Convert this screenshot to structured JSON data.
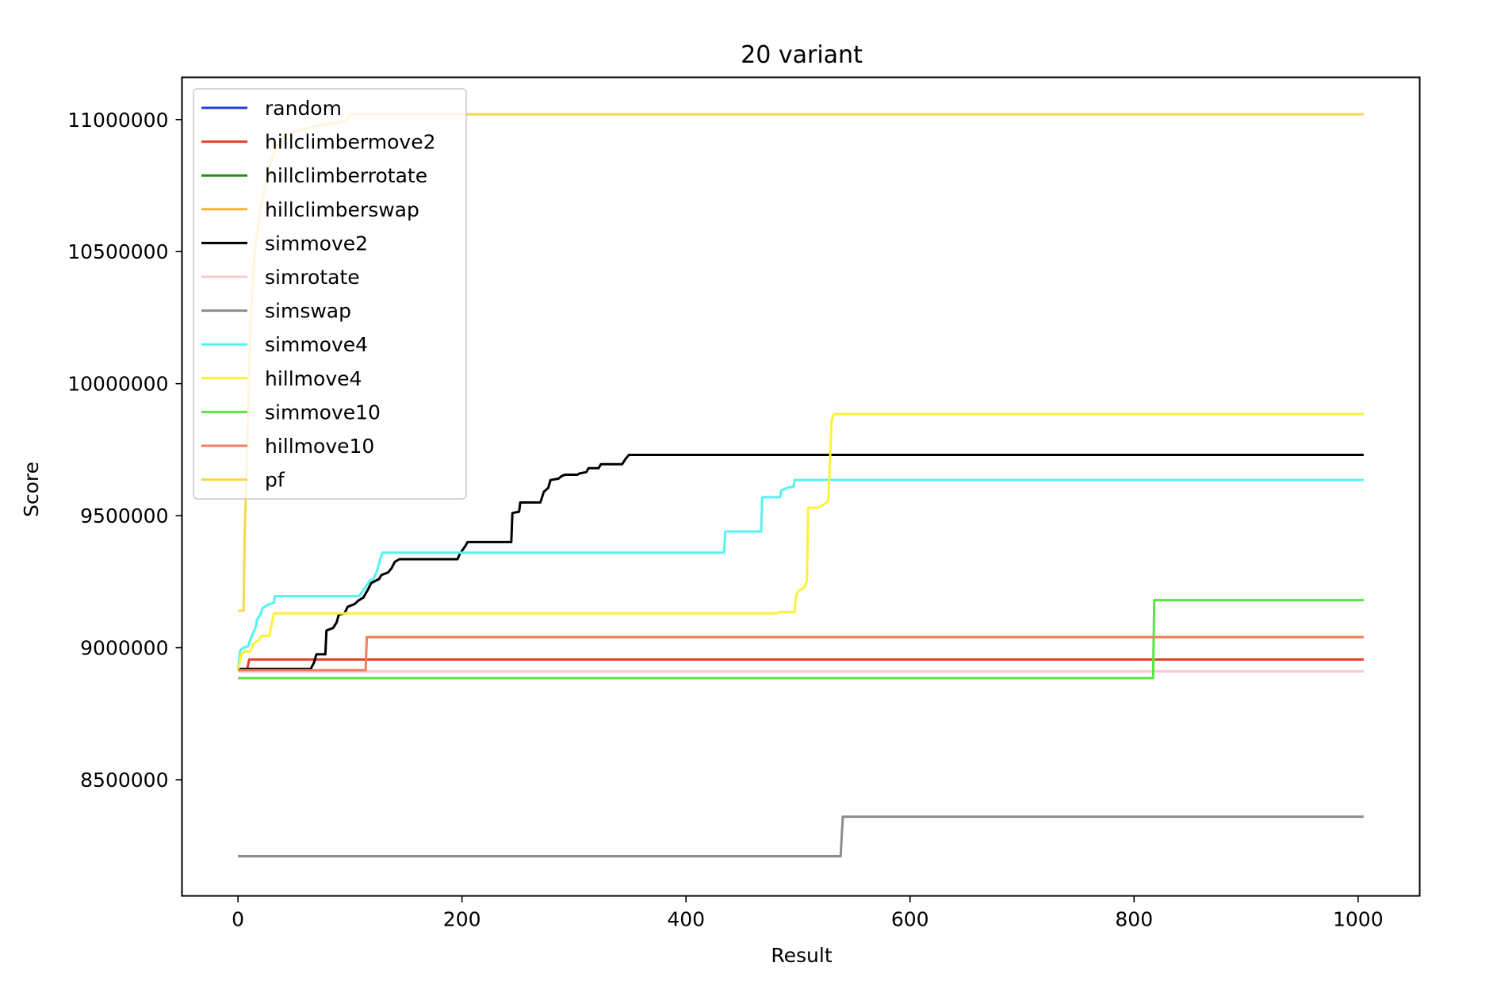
{
  "chart_data": {
    "type": "line",
    "title": "20 variant",
    "xlabel": "Result",
    "ylabel": "Score",
    "xlim": [
      -50,
      1055
    ],
    "ylim": [
      8060000,
      11160000
    ],
    "xticks": [
      0,
      200,
      400,
      600,
      800,
      1000
    ],
    "xtick_labels": [
      "0",
      "200",
      "400",
      "600",
      "800",
      "1000"
    ],
    "yticks": [
      8500000,
      9000000,
      9500000,
      10000000,
      10500000,
      11000000
    ],
    "ytick_labels": [
      "8500000",
      "9000000",
      "9500000",
      "10000000",
      "10500000",
      "11000000"
    ],
    "grid": false,
    "legend_position": "upper-left",
    "series": [
      {
        "name": "random",
        "color": "#1f3fd6",
        "points": []
      },
      {
        "name": "hillclimbermove2",
        "color": "#e8402a",
        "points": [
          [
            0,
            8915000
          ],
          [
            8,
            8915000
          ],
          [
            10,
            8955000
          ],
          [
            1005,
            8955000
          ]
        ]
      },
      {
        "name": "hillclimberrotate",
        "color": "#2a8a22",
        "points": []
      },
      {
        "name": "hillclimberswap",
        "color": "#f2b43a",
        "points": []
      },
      {
        "name": "simmove2",
        "color": "#000000",
        "points": [
          [
            0,
            8920000
          ],
          [
            65,
            8920000
          ],
          [
            68,
            8945000
          ],
          [
            70,
            8975000
          ],
          [
            78,
            8975000
          ],
          [
            79,
            9065000
          ],
          [
            85,
            9075000
          ],
          [
            88,
            9095000
          ],
          [
            90,
            9125000
          ],
          [
            95,
            9130000
          ],
          [
            98,
            9155000
          ],
          [
            104,
            9165000
          ],
          [
            108,
            9180000
          ],
          [
            112,
            9190000
          ],
          [
            116,
            9220000
          ],
          [
            119,
            9245000
          ],
          [
            126,
            9260000
          ],
          [
            128,
            9275000
          ],
          [
            134,
            9285000
          ],
          [
            137,
            9300000
          ],
          [
            140,
            9325000
          ],
          [
            144,
            9335000
          ],
          [
            196,
            9335000
          ],
          [
            198,
            9355000
          ],
          [
            203,
            9385000
          ],
          [
            205,
            9400000
          ],
          [
            244,
            9400000
          ],
          [
            245,
            9510000
          ],
          [
            251,
            9515000
          ],
          [
            252,
            9550000
          ],
          [
            270,
            9550000
          ],
          [
            273,
            9590000
          ],
          [
            277,
            9605000
          ],
          [
            279,
            9635000
          ],
          [
            286,
            9640000
          ],
          [
            289,
            9650000
          ],
          [
            292,
            9655000
          ],
          [
            303,
            9655000
          ],
          [
            305,
            9660000
          ],
          [
            311,
            9665000
          ],
          [
            313,
            9680000
          ],
          [
            322,
            9680000
          ],
          [
            324,
            9695000
          ],
          [
            343,
            9695000
          ],
          [
            346,
            9715000
          ],
          [
            349,
            9730000
          ],
          [
            1005,
            9730000
          ]
        ]
      },
      {
        "name": "simrotate",
        "color": "#f7c9cf",
        "points": [
          [
            0,
            8910000
          ],
          [
            1005,
            8910000
          ]
        ]
      },
      {
        "name": "simswap",
        "color": "#8c8c8c",
        "points": [
          [
            0,
            8210000
          ],
          [
            538,
            8210000
          ],
          [
            540,
            8360000
          ],
          [
            1005,
            8360000
          ]
        ]
      },
      {
        "name": "simmove4",
        "color": "#55f2f2",
        "points": [
          [
            0,
            8915000
          ],
          [
            2,
            8990000
          ],
          [
            5,
            9000000
          ],
          [
            9,
            9005000
          ],
          [
            11,
            9030000
          ],
          [
            14,
            9060000
          ],
          [
            16,
            9080000
          ],
          [
            17,
            9105000
          ],
          [
            20,
            9125000
          ],
          [
            22,
            9150000
          ],
          [
            26,
            9160000
          ],
          [
            28,
            9165000
          ],
          [
            32,
            9170000
          ],
          [
            33,
            9195000
          ],
          [
            108,
            9195000
          ],
          [
            110,
            9205000
          ],
          [
            113,
            9225000
          ],
          [
            118,
            9255000
          ],
          [
            121,
            9260000
          ],
          [
            124,
            9290000
          ],
          [
            127,
            9335000
          ],
          [
            129,
            9360000
          ],
          [
            434,
            9360000
          ],
          [
            435,
            9440000
          ],
          [
            467,
            9440000
          ],
          [
            468,
            9570000
          ],
          [
            484,
            9570000
          ],
          [
            485,
            9595000
          ],
          [
            490,
            9605000
          ],
          [
            496,
            9610000
          ],
          [
            497,
            9635000
          ],
          [
            1005,
            9635000
          ]
        ]
      },
      {
        "name": "hillmove4",
        "color": "#fbf13a",
        "points": [
          [
            0,
            8915000
          ],
          [
            3,
            8975000
          ],
          [
            6,
            8985000
          ],
          [
            11,
            8985000
          ],
          [
            14,
            9015000
          ],
          [
            19,
            9030000
          ],
          [
            21,
            9045000
          ],
          [
            28,
            9045000
          ],
          [
            32,
            9130000
          ],
          [
            481,
            9130000
          ],
          [
            484,
            9135000
          ],
          [
            497,
            9135000
          ],
          [
            498,
            9190000
          ],
          [
            500,
            9215000
          ],
          [
            503,
            9220000
          ],
          [
            506,
            9230000
          ],
          [
            508,
            9255000
          ],
          [
            509,
            9530000
          ],
          [
            517,
            9530000
          ],
          [
            520,
            9535000
          ],
          [
            524,
            9545000
          ],
          [
            527,
            9555000
          ],
          [
            530,
            9860000
          ],
          [
            532,
            9885000
          ],
          [
            1005,
            9885000
          ]
        ]
      },
      {
        "name": "simmove10",
        "color": "#55e840",
        "points": [
          [
            0,
            8885000
          ],
          [
            817,
            8885000
          ],
          [
            818,
            9180000
          ],
          [
            1005,
            9180000
          ]
        ]
      },
      {
        "name": "hillmove10",
        "color": "#ed7f5c",
        "points": [
          [
            0,
            8915000
          ],
          [
            114,
            8915000
          ],
          [
            115,
            9040000
          ],
          [
            1005,
            9040000
          ]
        ]
      },
      {
        "name": "pf",
        "color": "#f8d84a",
        "points": [
          [
            0,
            9140000
          ],
          [
            5,
            9140000
          ],
          [
            6,
            9440000
          ],
          [
            8,
            9700000
          ],
          [
            10,
            10050000
          ],
          [
            12,
            10300000
          ],
          [
            15,
            10500000
          ],
          [
            18,
            10600000
          ],
          [
            22,
            10700000
          ],
          [
            26,
            10780000
          ],
          [
            30,
            10850000
          ],
          [
            35,
            10900000
          ],
          [
            42,
            10940000
          ],
          [
            55,
            10960000
          ],
          [
            70,
            10975000
          ],
          [
            82,
            10985000
          ],
          [
            92,
            10990000
          ],
          [
            97,
            11000000
          ],
          [
            100,
            11020000
          ],
          [
            1005,
            11020000
          ]
        ]
      }
    ]
  }
}
